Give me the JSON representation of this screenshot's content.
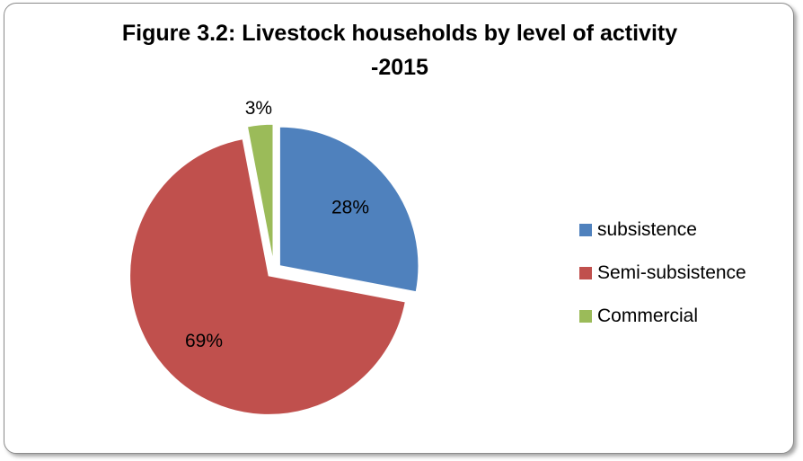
{
  "chart_data": {
    "type": "pie",
    "title_line1": "Figure 3.2: Livestock households by level of activity",
    "title_line2": "-2015",
    "categories": [
      "subsistence",
      "Semi-subsistence",
      "Commercial"
    ],
    "values": [
      28,
      69,
      3
    ],
    "data_labels": [
      "28%",
      "69%",
      "3%"
    ],
    "colors": [
      "#4f81bd",
      "#c0504d",
      "#9bbb59"
    ],
    "exploded": true,
    "start_angle_deg": 0,
    "direction": "clockwise",
    "legend_position": "right"
  }
}
